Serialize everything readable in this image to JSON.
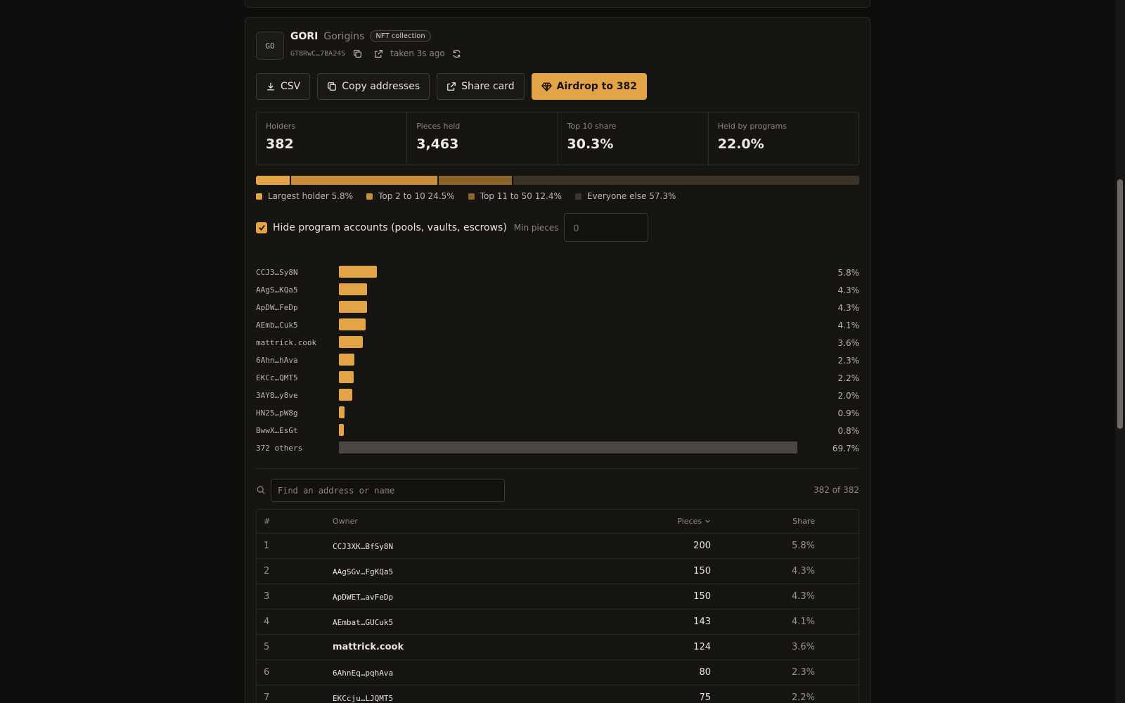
{
  "token": {
    "avatar_text": "GO",
    "symbol": "GORI",
    "name": "Gorigins",
    "badge": "NFT collection",
    "mint_short": "GT8RwC…7BA24S",
    "taken": "taken 3s ago"
  },
  "actions": {
    "csv": "CSV",
    "copy": "Copy addresses",
    "share": "Share card",
    "airdrop": "Airdrop to 382"
  },
  "stats": [
    {
      "label": "Holders",
      "value": "382"
    },
    {
      "label": "Pieces held",
      "value": "3,463"
    },
    {
      "label": "Top 10 share",
      "value": "30.3%"
    },
    {
      "label": "Held by programs",
      "value": "22.0%"
    }
  ],
  "distribution": [
    {
      "label": "Largest holder 5.8%",
      "fraction": 0.058,
      "color": "#e2a446"
    },
    {
      "label": "Top 2 to 10 24.5%",
      "fraction": 0.245,
      "color": "#c78d3a"
    },
    {
      "label": "Top 11 to 50 12.4%",
      "fraction": 0.124,
      "color": "#8c6429"
    },
    {
      "label": "Everyone else 57.3%",
      "fraction": 0.573,
      "color": "#3a3328"
    }
  ],
  "filter": {
    "hide_programs_label": "Hide program accounts (pools, vaults, escrows)",
    "hide_programs_checked": true,
    "min_label": "Min pieces",
    "min_placeholder": "0"
  },
  "holder_bars": [
    {
      "label": "CCJ3…Sy8N",
      "share": 5.8,
      "pct": "5.8%"
    },
    {
      "label": "AAgS…KQa5",
      "share": 4.3,
      "pct": "4.3%"
    },
    {
      "label": "ApDW…FeDp",
      "share": 4.3,
      "pct": "4.3%"
    },
    {
      "label": "AEmb…Cuk5",
      "share": 4.1,
      "pct": "4.1%"
    },
    {
      "label": "mattrick.cook",
      "share": 3.6,
      "pct": "3.6%"
    },
    {
      "label": "6Ahn…hAva",
      "share": 2.3,
      "pct": "2.3%"
    },
    {
      "label": "EKCc…QMT5",
      "share": 2.2,
      "pct": "2.2%"
    },
    {
      "label": "3AY8…y8ve",
      "share": 2.0,
      "pct": "2.0%"
    },
    {
      "label": "HN25…pW8g",
      "share": 0.9,
      "pct": "0.9%"
    },
    {
      "label": "BwwX…EsGt",
      "share": 0.8,
      "pct": "0.8%"
    },
    {
      "label": "372 others",
      "share": 69.7,
      "pct": "69.7%",
      "others": true
    }
  ],
  "search": {
    "placeholder": "Find an address or name",
    "count": "382 of 382"
  },
  "table": {
    "headers": {
      "rank": "#",
      "owner": "Owner",
      "pieces": "Pieces",
      "share": "Share"
    },
    "rows": [
      {
        "rank": "1",
        "owner": "CCJ3XK…BfSy8N",
        "pieces": "200",
        "share": "5.8%",
        "named": false
      },
      {
        "rank": "2",
        "owner": "AAgSGv…FgKQa5",
        "pieces": "150",
        "share": "4.3%",
        "named": false
      },
      {
        "rank": "3",
        "owner": "ApDWET…avFeDp",
        "pieces": "150",
        "share": "4.3%",
        "named": false
      },
      {
        "rank": "4",
        "owner": "AEmbat…GUCuk5",
        "pieces": "143",
        "share": "4.1%",
        "named": false
      },
      {
        "rank": "5",
        "owner": "mattrick.cook",
        "pieces": "124",
        "share": "3.6%",
        "named": true
      },
      {
        "rank": "6",
        "owner": "6AhnEq…pqhAva",
        "pieces": "80",
        "share": "2.3%",
        "named": false
      },
      {
        "rank": "7",
        "owner": "EKCcju…LJQMT5",
        "pieces": "75",
        "share": "2.2%",
        "named": false
      }
    ]
  },
  "colors": {
    "accent": "#e2a446",
    "others_bar": "#4a4741"
  }
}
